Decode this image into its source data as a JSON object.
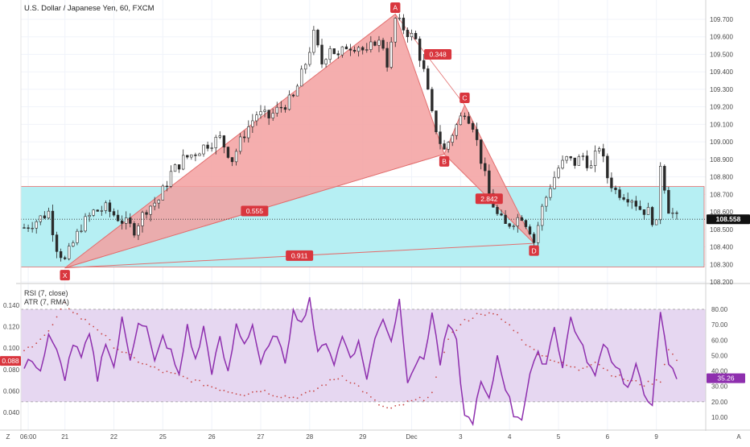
{
  "header": {
    "title": "U.S. Dollar / Japanese Yen, 60, FXCM"
  },
  "colors": {
    "up": "#2a2a2a",
    "down": "#2a2a2a",
    "pattern_fill": "#f3a0a0",
    "pattern_stroke": "#e26f6f",
    "zone_fill": "#b2eef2",
    "zone_stroke": "#e26f6f",
    "label_bg": "#d9363e",
    "rsi_line": "#8e2fae",
    "rsi_band": "#e6d7f1",
    "atr_dot": "#c94a4a",
    "price_tag": "#111111",
    "rsi_tag": "#8e2fae",
    "atr_tag": "#d9363e"
  },
  "price_axis": {
    "ticks": [
      "109.700",
      "109.600",
      "109.500",
      "109.400",
      "109.300",
      "109.200",
      "109.100",
      "109.000",
      "108.900",
      "108.800",
      "108.700",
      "108.600",
      "108.500",
      "108.400",
      "108.300",
      "108.200"
    ],
    "current": "108.558"
  },
  "rsi_axis": {
    "ticks": [
      "80.00",
      "70.00",
      "60.00",
      "50.00",
      "40.00",
      "30.00",
      "20.00",
      "10.00"
    ],
    "current": "35.26"
  },
  "atr_axis": {
    "ticks": [
      "0.140",
      "0.120",
      "0.100",
      "0.080",
      "0.060",
      "0.040"
    ],
    "current": "0.088"
  },
  "time_axis": {
    "labels": [
      "06:00",
      "21",
      "22",
      "25",
      "26",
      "27",
      "28",
      "29",
      "Dec",
      "3",
      "4",
      "5",
      "6",
      "9"
    ],
    "corner_left": "Z",
    "corner_right": "A"
  },
  "indicators": {
    "rsi_label": "RSI (7, close)",
    "atr_label": "ATR (7, RMA)"
  },
  "chart_data": {
    "type": "candlestick",
    "price_range": [
      108.2,
      109.75
    ],
    "pattern": {
      "points": [
        {
          "label": "X",
          "index": 10,
          "price": 108.28
        },
        {
          "label": "A",
          "index": 91,
          "price": 109.73
        },
        {
          "label": "B",
          "index": 103,
          "price": 108.93
        },
        {
          "label": "C",
          "index": 108,
          "price": 109.21
        },
        {
          "label": "D",
          "index": 125,
          "price": 108.42
        }
      ],
      "ratios": [
        {
          "label": "0.555",
          "between": "XA-AB"
        },
        {
          "label": "0.348",
          "between": "AB-BC"
        },
        {
          "label": "2.842",
          "between": "BC-CD"
        },
        {
          "label": "0.911",
          "between": "XD"
        }
      ]
    },
    "zone": {
      "top": 108.745,
      "bottom": 108.285
    },
    "close_points": [
      [
        0,
        108.51
      ],
      [
        3,
        108.55
      ],
      [
        6,
        108.6
      ],
      [
        8,
        108.4
      ],
      [
        10,
        108.32
      ],
      [
        12,
        108.42
      ],
      [
        14,
        108.52
      ],
      [
        17,
        108.6
      ],
      [
        20,
        108.62
      ],
      [
        24,
        108.55
      ],
      [
        27,
        108.5
      ],
      [
        30,
        108.62
      ],
      [
        33,
        108.67
      ],
      [
        36,
        108.82
      ],
      [
        39,
        108.9
      ],
      [
        42,
        108.94
      ],
      [
        45,
        108.99
      ],
      [
        48,
        109.02
      ],
      [
        51,
        108.9
      ],
      [
        54,
        109.05
      ],
      [
        57,
        109.16
      ],
      [
        60,
        109.14
      ],
      [
        63,
        109.2
      ],
      [
        66,
        109.25
      ],
      [
        69,
        109.45
      ],
      [
        71,
        109.61
      ],
      [
        73,
        109.45
      ],
      [
        75,
        109.55
      ],
      [
        77,
        109.48
      ],
      [
        79,
        109.55
      ],
      [
        82,
        109.55
      ],
      [
        84,
        109.5
      ],
      [
        86,
        109.58
      ],
      [
        88,
        109.55
      ],
      [
        89,
        109.45
      ],
      [
        90,
        109.55
      ],
      [
        91,
        109.7
      ],
      [
        93,
        109.65
      ],
      [
        96,
        109.58
      ],
      [
        98,
        109.4
      ],
      [
        100,
        109.15
      ],
      [
        102,
        109.0
      ],
      [
        103,
        108.95
      ],
      [
        105,
        109.05
      ],
      [
        108,
        109.18
      ],
      [
        110,
        109.1
      ],
      [
        112,
        108.9
      ],
      [
        114,
        108.7
      ],
      [
        116,
        108.58
      ],
      [
        118,
        108.52
      ],
      [
        120,
        108.55
      ],
      [
        122,
        108.58
      ],
      [
        124,
        108.5
      ],
      [
        125,
        108.43
      ],
      [
        127,
        108.62
      ],
      [
        129,
        108.75
      ],
      [
        131,
        108.85
      ],
      [
        133,
        108.9
      ],
      [
        135,
        108.88
      ],
      [
        137,
        108.92
      ],
      [
        139,
        108.85
      ],
      [
        141,
        108.98
      ],
      [
        143,
        108.8
      ],
      [
        145,
        108.72
      ],
      [
        147,
        108.7
      ],
      [
        149,
        108.68
      ],
      [
        151,
        108.62
      ],
      [
        153,
        108.6
      ],
      [
        155,
        108.52
      ],
      [
        156,
        108.88
      ],
      [
        158,
        108.62
      ],
      [
        160,
        108.56
      ]
    ],
    "rsi_points": [
      [
        0,
        42
      ],
      [
        2,
        48
      ],
      [
        4,
        40
      ],
      [
        6,
        62
      ],
      [
        8,
        52
      ],
      [
        10,
        36
      ],
      [
        12,
        58
      ],
      [
        14,
        48
      ],
      [
        16,
        63
      ],
      [
        18,
        35
      ],
      [
        20,
        60
      ],
      [
        22,
        42
      ],
      [
        24,
        73
      ],
      [
        26,
        48
      ],
      [
        28,
        73
      ],
      [
        30,
        68
      ],
      [
        32,
        45
      ],
      [
        34,
        62
      ],
      [
        36,
        52
      ],
      [
        38,
        36
      ],
      [
        40,
        70
      ],
      [
        42,
        46
      ],
      [
        44,
        68
      ],
      [
        46,
        40
      ],
      [
        48,
        60
      ],
      [
        50,
        38
      ],
      [
        52,
        70
      ],
      [
        54,
        58
      ],
      [
        56,
        70
      ],
      [
        58,
        45
      ],
      [
        60,
        55
      ],
      [
        62,
        65
      ],
      [
        64,
        42
      ],
      [
        66,
        82
      ],
      [
        68,
        70
      ],
      [
        70,
        88
      ],
      [
        72,
        50
      ],
      [
        74,
        60
      ],
      [
        76,
        45
      ],
      [
        78,
        62
      ],
      [
        80,
        50
      ],
      [
        82,
        58
      ],
      [
        84,
        36
      ],
      [
        86,
        60
      ],
      [
        88,
        75
      ],
      [
        90,
        60
      ],
      [
        92,
        86
      ],
      [
        94,
        35
      ],
      [
        96,
        45
      ],
      [
        98,
        48
      ],
      [
        100,
        78
      ],
      [
        102,
        45
      ],
      [
        104,
        70
      ],
      [
        106,
        58
      ],
      [
        108,
        10
      ],
      [
        110,
        8
      ],
      [
        112,
        32
      ],
      [
        114,
        20
      ],
      [
        116,
        50
      ],
      [
        118,
        30
      ],
      [
        120,
        12
      ],
      [
        122,
        10
      ],
      [
        124,
        38
      ],
      [
        126,
        50
      ],
      [
        128,
        45
      ],
      [
        130,
        70
      ],
      [
        132,
        42
      ],
      [
        134,
        75
      ],
      [
        136,
        60
      ],
      [
        138,
        48
      ],
      [
        140,
        35
      ],
      [
        142,
        60
      ],
      [
        144,
        48
      ],
      [
        146,
        40
      ],
      [
        148,
        28
      ],
      [
        150,
        42
      ],
      [
        152,
        25
      ],
      [
        154,
        20
      ],
      [
        156,
        76
      ],
      [
        158,
        45
      ],
      [
        160,
        35
      ]
    ],
    "atr_points": [
      [
        0,
        0.097
      ],
      [
        6,
        0.115
      ],
      [
        10,
        0.141
      ],
      [
        14,
        0.128
      ],
      [
        18,
        0.118
      ],
      [
        22,
        0.102
      ],
      [
        26,
        0.092
      ],
      [
        30,
        0.084
      ],
      [
        34,
        0.078
      ],
      [
        38,
        0.074
      ],
      [
        42,
        0.069
      ],
      [
        46,
        0.064
      ],
      [
        50,
        0.06
      ],
      [
        54,
        0.057
      ],
      [
        58,
        0.061
      ],
      [
        62,
        0.056
      ],
      [
        66,
        0.054
      ],
      [
        70,
        0.058
      ],
      [
        74,
        0.067
      ],
      [
        78,
        0.074
      ],
      [
        82,
        0.064
      ],
      [
        86,
        0.05
      ],
      [
        88,
        0.045
      ],
      [
        90,
        0.043
      ],
      [
        94,
        0.049
      ],
      [
        98,
        0.053
      ],
      [
        100,
        0.058
      ],
      [
        104,
        0.11
      ],
      [
        108,
        0.125
      ],
      [
        112,
        0.133
      ],
      [
        116,
        0.13
      ],
      [
        120,
        0.118
      ],
      [
        124,
        0.1
      ],
      [
        128,
        0.092
      ],
      [
        132,
        0.085
      ],
      [
        136,
        0.08
      ],
      [
        140,
        0.088
      ],
      [
        144,
        0.076
      ],
      [
        148,
        0.07
      ],
      [
        152,
        0.066
      ],
      [
        156,
        0.07
      ],
      [
        158,
        0.1
      ],
      [
        160,
        0.088
      ]
    ]
  }
}
